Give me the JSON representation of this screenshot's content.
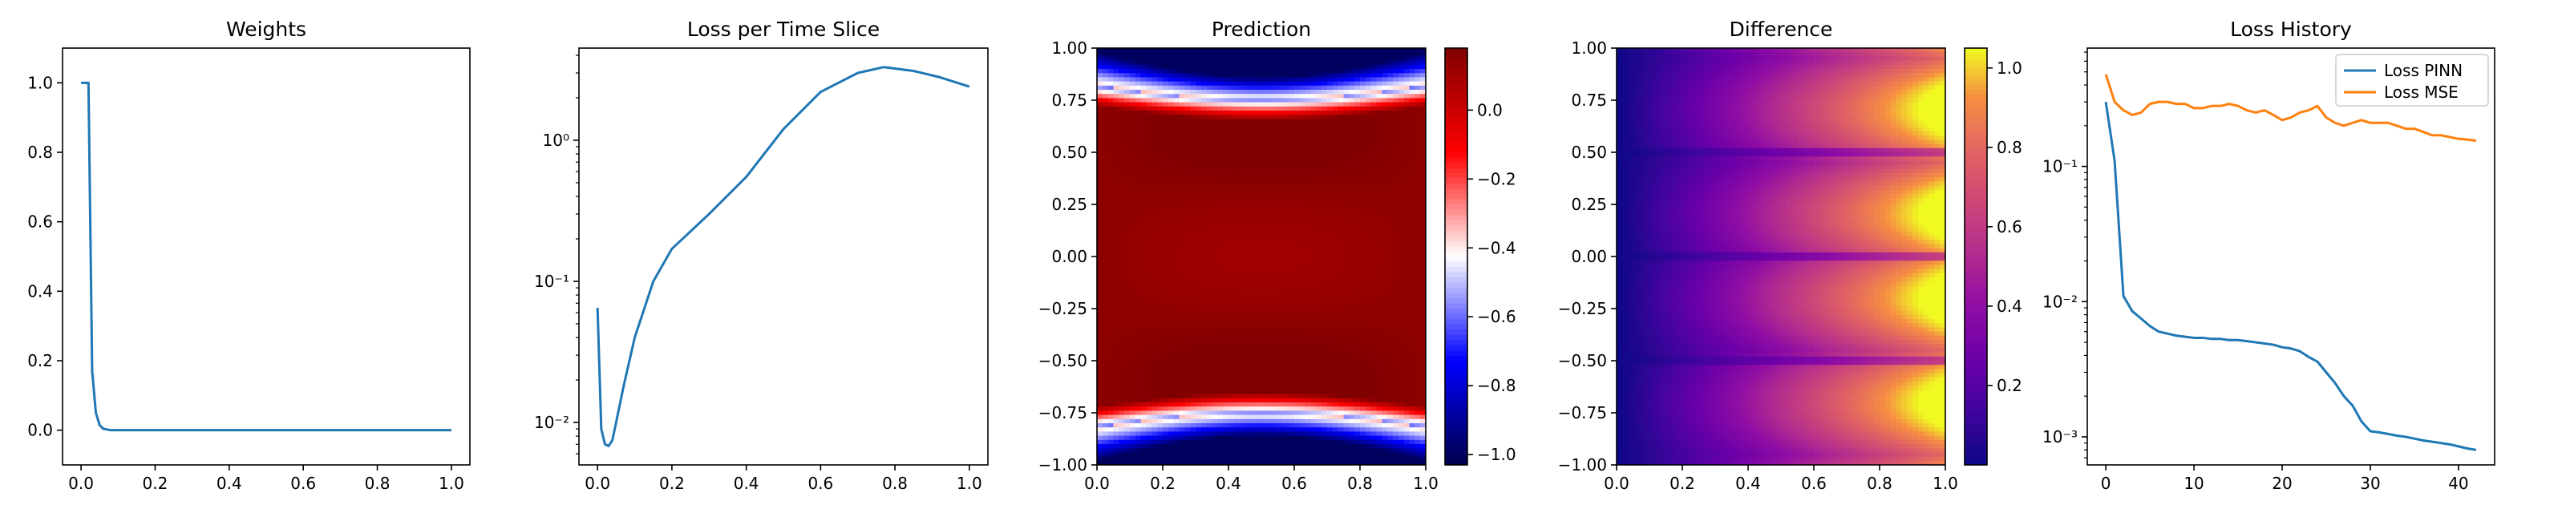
{
  "colors": {
    "blue": "#1f77b4",
    "orange": "#ff7f0e"
  },
  "chart_data": [
    {
      "type": "line",
      "title": "Weights",
      "xlim": [
        -0.05,
        1.05
      ],
      "ylim": [
        -0.1,
        1.1
      ],
      "xticks": [
        0.0,
        0.2,
        0.4,
        0.6,
        0.8,
        1.0
      ],
      "xtick_labels": [
        "0.0",
        "0.2",
        "0.4",
        "0.6",
        "0.8",
        "1.0"
      ],
      "yticks": [
        0.0,
        0.2,
        0.4,
        0.6,
        0.8,
        1.0
      ],
      "ytick_labels": [
        "0.0",
        "0.2",
        "0.4",
        "0.6",
        "0.8",
        "1.0"
      ],
      "series": [
        {
          "color": "#1f77b4",
          "x": [
            0.0,
            0.02,
            0.03,
            0.04,
            0.05,
            0.06,
            0.08,
            0.1,
            0.2,
            0.4,
            0.6,
            0.8,
            1.0
          ],
          "y": [
            1.0,
            1.0,
            0.17,
            0.05,
            0.015,
            0.004,
            0.0,
            0.0,
            0.0,
            0.0,
            0.0,
            0.0,
            0.0
          ]
        }
      ]
    },
    {
      "type": "line",
      "title": "Loss per Time Slice",
      "yscale": "log",
      "xlim": [
        -0.05,
        1.05
      ],
      "ylim": [
        0.005,
        4.5
      ],
      "xticks": [
        0.0,
        0.2,
        0.4,
        0.6,
        0.8,
        1.0
      ],
      "xtick_labels": [
        "0.0",
        "0.2",
        "0.4",
        "0.6",
        "0.8",
        "1.0"
      ],
      "yticks": [
        0.01,
        0.1,
        1
      ],
      "ytick_labels": [
        "10⁻²",
        "10⁻¹",
        "10⁰"
      ],
      "series": [
        {
          "color": "#1f77b4",
          "x": [
            0.0,
            0.01,
            0.02,
            0.03,
            0.04,
            0.05,
            0.07,
            0.1,
            0.15,
            0.2,
            0.3,
            0.4,
            0.5,
            0.6,
            0.7,
            0.77,
            0.85,
            0.92,
            1.0
          ],
          "y": [
            0.065,
            0.009,
            0.007,
            0.0068,
            0.0075,
            0.01,
            0.018,
            0.04,
            0.1,
            0.17,
            0.3,
            0.55,
            1.2,
            2.2,
            3.0,
            3.3,
            3.1,
            2.8,
            2.4
          ]
        }
      ]
    },
    {
      "type": "heatmap",
      "title": "Prediction",
      "colormap": "seismic",
      "xlim": [
        0,
        1
      ],
      "ylim": [
        -1,
        1
      ],
      "xticks": [
        0.0,
        0.2,
        0.4,
        0.6,
        0.8,
        1.0
      ],
      "xtick_labels": [
        "0.0",
        "0.2",
        "0.4",
        "0.6",
        "0.8",
        "1.0"
      ],
      "yticks": [
        -1.0,
        -0.75,
        -0.5,
        -0.25,
        0.0,
        0.25,
        0.5,
        0.75,
        1.0
      ],
      "ytick_labels": [
        "−1.00",
        "−0.75",
        "−0.50",
        "−0.25",
        "0.00",
        "0.25",
        "0.50",
        "0.75",
        "1.00"
      ],
      "colorbar": {
        "range": [
          -1.03,
          0.18
        ],
        "ticks": [
          -1.0,
          -0.8,
          -0.6,
          -0.4,
          -0.2,
          0.0
        ],
        "tick_labels": [
          "−1.0",
          "−0.8",
          "−0.6",
          "−0.4",
          "−0.2",
          "0.0"
        ]
      }
    },
    {
      "type": "heatmap",
      "title": "Difference",
      "colormap": "plasma",
      "xlim": [
        0,
        1
      ],
      "ylim": [
        -1,
        1
      ],
      "xticks": [
        0.0,
        0.2,
        0.4,
        0.6,
        0.8,
        1.0
      ],
      "xtick_labels": [
        "0.0",
        "0.2",
        "0.4",
        "0.6",
        "0.8",
        "1.0"
      ],
      "yticks": [
        -1.0,
        -0.75,
        -0.5,
        -0.25,
        0.0,
        0.25,
        0.5,
        0.75,
        1.0
      ],
      "ytick_labels": [
        "−1.00",
        "−0.75",
        "−0.50",
        "−0.25",
        "0.00",
        "0.25",
        "0.50",
        "0.75",
        "1.00"
      ],
      "colorbar": {
        "range": [
          0.0,
          1.05
        ],
        "ticks": [
          0.2,
          0.4,
          0.6,
          0.8,
          1.0
        ],
        "tick_labels": [
          "0.2",
          "0.4",
          "0.6",
          "0.8",
          "1.0"
        ]
      }
    },
    {
      "type": "line",
      "title": "Loss History",
      "yscale": "log",
      "xlim": [
        -2.1,
        44.1
      ],
      "ylim": [
        0.00062,
        0.75
      ],
      "xticks": [
        0,
        10,
        20,
        30,
        40
      ],
      "xtick_labels": [
        "0",
        "10",
        "20",
        "30",
        "40"
      ],
      "yticks": [
        0.001,
        0.01,
        0.1
      ],
      "ytick_labels": [
        "10⁻³",
        "10⁻²",
        "10⁻¹"
      ],
      "legend": "top-right",
      "series": [
        {
          "name": "Loss PINN",
          "color": "#1f77b4",
          "x": [
            0,
            1,
            2,
            3,
            4,
            5,
            6,
            7,
            8,
            9,
            10,
            11,
            12,
            13,
            14,
            15,
            16,
            17,
            18,
            19,
            20,
            21,
            22,
            23,
            24,
            25,
            26,
            27,
            28,
            29,
            30,
            31,
            32,
            33,
            34,
            35,
            36,
            37,
            38,
            39,
            40,
            41,
            42
          ],
          "y": [
            0.3,
            0.11,
            0.011,
            0.0085,
            0.0075,
            0.0066,
            0.006,
            0.0058,
            0.0056,
            0.0055,
            0.0054,
            0.0054,
            0.0053,
            0.0053,
            0.0052,
            0.0052,
            0.0051,
            0.005,
            0.0049,
            0.0048,
            0.0046,
            0.0045,
            0.0043,
            0.0039,
            0.0036,
            0.003,
            0.0025,
            0.002,
            0.0017,
            0.0013,
            0.0011,
            0.00108,
            0.00105,
            0.00102,
            0.001,
            0.00097,
            0.00094,
            0.00092,
            0.0009,
            0.00088,
            0.00085,
            0.00082,
            0.0008
          ]
        },
        {
          "name": "Loss MSE",
          "color": "#ff7f0e",
          "x": [
            0,
            1,
            2,
            3,
            4,
            5,
            6,
            7,
            8,
            9,
            10,
            11,
            12,
            13,
            14,
            15,
            16,
            17,
            18,
            19,
            20,
            21,
            22,
            23,
            24,
            25,
            26,
            27,
            28,
            29,
            30,
            31,
            32,
            33,
            34,
            35,
            36,
            37,
            38,
            39,
            40,
            41,
            42
          ],
          "y": [
            0.48,
            0.3,
            0.26,
            0.24,
            0.25,
            0.29,
            0.3,
            0.3,
            0.29,
            0.29,
            0.27,
            0.27,
            0.28,
            0.28,
            0.29,
            0.28,
            0.26,
            0.25,
            0.26,
            0.24,
            0.22,
            0.23,
            0.25,
            0.26,
            0.28,
            0.23,
            0.21,
            0.2,
            0.21,
            0.22,
            0.21,
            0.21,
            0.21,
            0.2,
            0.19,
            0.19,
            0.18,
            0.17,
            0.17,
            0.165,
            0.16,
            0.158,
            0.155
          ]
        }
      ]
    }
  ]
}
